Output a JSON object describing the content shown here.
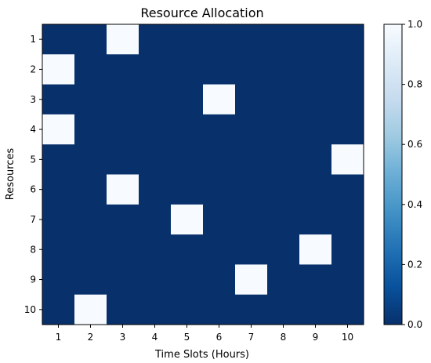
{
  "chart_data": {
    "type": "heatmap",
    "title": "Resource Allocation",
    "xlabel": "Time Slots (Hours)",
    "ylabel": "Resources",
    "x_categories": [
      "1",
      "2",
      "3",
      "4",
      "5",
      "6",
      "7",
      "8",
      "9",
      "10"
    ],
    "y_categories": [
      "1",
      "2",
      "3",
      "4",
      "5",
      "6",
      "7",
      "8",
      "9",
      "10"
    ],
    "values": [
      [
        0,
        0,
        1,
        0,
        0,
        0,
        0,
        0,
        0,
        0
      ],
      [
        1,
        0,
        0,
        0,
        0,
        0,
        0,
        0,
        0,
        0
      ],
      [
        0,
        0,
        0,
        0,
        0,
        1,
        0,
        0,
        0,
        0
      ],
      [
        1,
        0,
        0,
        0,
        0,
        0,
        0,
        0,
        0,
        0
      ],
      [
        0,
        0,
        0,
        0,
        0,
        0,
        0,
        0,
        0,
        1
      ],
      [
        0,
        0,
        1,
        0,
        0,
        0,
        0,
        0,
        0,
        0
      ],
      [
        0,
        0,
        0,
        0,
        1,
        0,
        0,
        0,
        0,
        0
      ],
      [
        0,
        0,
        0,
        0,
        0,
        0,
        0,
        0,
        1,
        0
      ],
      [
        0,
        0,
        0,
        0,
        0,
        0,
        1,
        0,
        0,
        0
      ],
      [
        0,
        1,
        0,
        0,
        0,
        0,
        0,
        0,
        0,
        0
      ]
    ],
    "colorbar": {
      "range": [
        0,
        1
      ],
      "ticks": [
        "0.0",
        "0.2",
        "0.4",
        "0.6",
        "0.8",
        "1.0"
      ],
      "colormap": "Blues_r",
      "low_color": "#08306b",
      "high_color": "#f7fbff"
    }
  }
}
